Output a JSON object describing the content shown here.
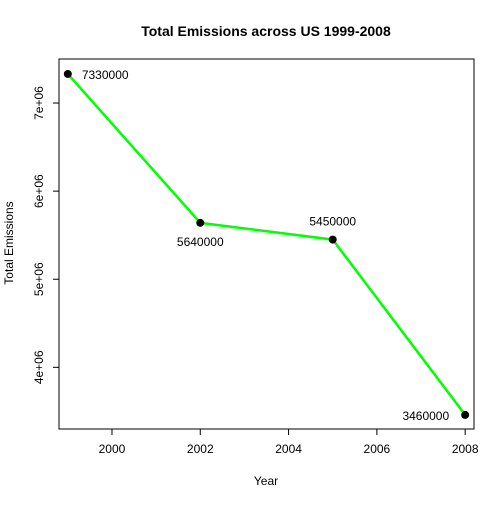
{
  "chart_data": {
    "type": "line",
    "title": "Total Emissions across US 1999-2008",
    "xlabel": "Year",
    "ylabel": "Total Emissions",
    "x": [
      1999,
      2002,
      2005,
      2008
    ],
    "series": [
      {
        "values": [
          7330000,
          5640000,
          5450000,
          3460000
        ]
      }
    ],
    "data_labels": [
      "7330000",
      "5640000",
      "5450000",
      "3460000"
    ],
    "xlim": [
      1998.8,
      2008.2
    ],
    "ylim": [
      3300000,
      7500000
    ],
    "xticks": [
      2000,
      2002,
      2004,
      2006,
      2008
    ],
    "xtick_labels": [
      "2000",
      "2002",
      "2004",
      "2006",
      "2008"
    ],
    "yticks": [
      4000000,
      5000000,
      6000000,
      7000000
    ],
    "ytick_labels": [
      "4e+06",
      "5e+06",
      "6e+06",
      "7e+06"
    ],
    "line_color": "#00ff00",
    "point_color": "#000000",
    "grid": false,
    "legend": "none"
  }
}
